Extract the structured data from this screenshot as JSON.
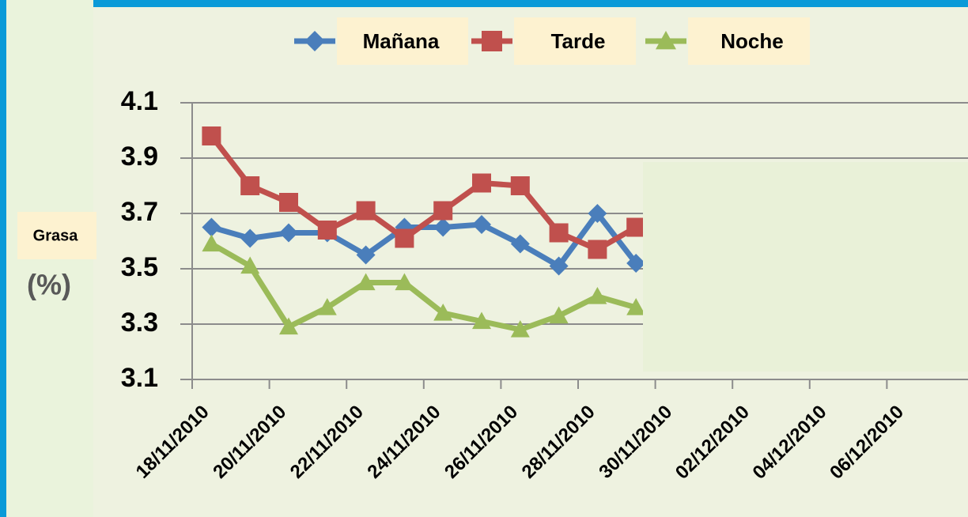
{
  "chart_data": {
    "type": "line",
    "y_label": "Grasa",
    "y_unit": "(%)",
    "x": [
      "18/11/2010",
      "19/11/2010",
      "20/11/2010",
      "21/11/2010",
      "22/11/2010",
      "23/11/2010",
      "24/11/2010",
      "25/11/2010",
      "26/11/2010",
      "27/11/2010",
      "28/11/2010",
      "29/11/2010"
    ],
    "xlim": [
      "18/11/2010",
      "08/12/2010"
    ],
    "xticks": [
      "18/11/2010",
      "20/11/2010",
      "22/11/2010",
      "24/11/2010",
      "26/11/2010",
      "28/11/2010",
      "30/11/2010",
      "02/12/2010",
      "04/12/2010",
      "06/12/2010"
    ],
    "ylim": [
      3.1,
      4.1
    ],
    "yticks": [
      3.1,
      3.3,
      3.5,
      3.7,
      3.9,
      4.1
    ],
    "grid": true,
    "series": [
      {
        "name": "Mañana",
        "color": "#4a7ebb",
        "marker": "diamond",
        "values": [
          3.65,
          3.61,
          3.63,
          3.63,
          3.55,
          3.65,
          3.65,
          3.66,
          3.59,
          3.51,
          3.7,
          3.52
        ]
      },
      {
        "name": "Tarde",
        "color": "#c0504d",
        "marker": "square",
        "values": [
          3.98,
          3.8,
          3.74,
          3.64,
          3.71,
          3.61,
          3.71,
          3.81,
          3.8,
          3.63,
          3.57,
          3.65
        ]
      },
      {
        "name": "Noche",
        "color": "#9bbb59",
        "marker": "triangle",
        "values": [
          3.59,
          3.51,
          3.29,
          3.36,
          3.45,
          3.45,
          3.34,
          3.31,
          3.28,
          3.33,
          3.4,
          3.36
        ]
      }
    ]
  }
}
